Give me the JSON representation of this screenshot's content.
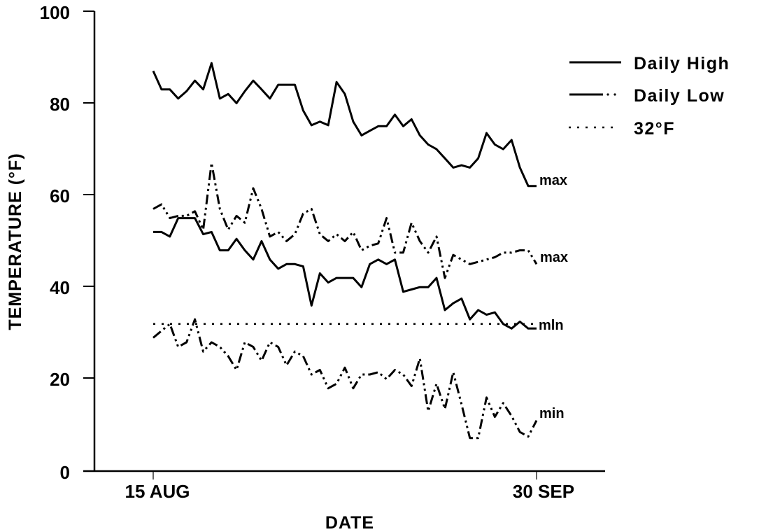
{
  "chart_data": {
    "type": "line",
    "title": "",
    "xlabel": "DATE",
    "ylabel": "TEMPERATURE (°F)",
    "ylim": [
      0,
      100
    ],
    "yticks": [
      0,
      20,
      40,
      60,
      80,
      100
    ],
    "xlim_days": [
      -7.9,
      54.2
    ],
    "xticks": [
      {
        "day": 0,
        "label": "15 AUG"
      },
      {
        "day": 46,
        "label": "30 SEP"
      }
    ],
    "grid": false,
    "legend_position": "upper right",
    "legend": [
      {
        "label": "Daily High",
        "style": "solid"
      },
      {
        "label": "Daily Low",
        "style": "dash-dot"
      },
      {
        "label": "32°F",
        "style": "dotted"
      }
    ],
    "series": [
      {
        "name": "Daily High max",
        "end_label": "max",
        "style": "solid",
        "x": [
          0,
          1,
          2,
          3,
          4,
          5,
          6,
          7,
          8,
          9,
          10,
          11,
          12,
          13,
          14,
          15,
          16,
          17,
          18,
          19,
          20,
          21,
          22,
          23,
          24,
          25,
          26,
          27,
          28,
          29,
          30,
          31,
          32,
          33,
          34,
          35,
          36,
          37,
          38,
          39,
          40,
          41,
          42,
          43,
          44,
          45,
          46
        ],
        "values": [
          87,
          83,
          83,
          81,
          82.6,
          84.9,
          83,
          88.7,
          81,
          82,
          80,
          82.6,
          84.9,
          83,
          81,
          84,
          84,
          84,
          78.4,
          75.2,
          76,
          75.2,
          84.6,
          82,
          76,
          73,
          74,
          75,
          75,
          77.5,
          75,
          76.5,
          73,
          71,
          70,
          68,
          66,
          66.5,
          66,
          68,
          73.5,
          71,
          70,
          72,
          66,
          62,
          62
        ]
      },
      {
        "name": "Daily Low max",
        "end_label": "max",
        "style": "dash-dot",
        "x": [
          0,
          1,
          2,
          3,
          4,
          5,
          6,
          7,
          8,
          9,
          10,
          11,
          12,
          13,
          14,
          15,
          16,
          17,
          18,
          19,
          20,
          21,
          22,
          23,
          24,
          25,
          26,
          27,
          28,
          29,
          30,
          31,
          32,
          33,
          34,
          35,
          36,
          37,
          38,
          39,
          40,
          41,
          42,
          43,
          44,
          45,
          46
        ],
        "values": [
          57,
          58,
          55,
          55.5,
          55.5,
          56.5,
          52.5,
          67,
          57,
          52.5,
          55.5,
          54,
          61.5,
          57,
          51,
          52,
          50,
          51.5,
          56,
          57,
          51.5,
          50,
          51.5,
          50,
          52,
          48,
          49,
          49.5,
          55,
          47.5,
          47.5,
          54,
          50,
          47.5,
          51,
          42,
          47,
          46,
          45,
          45.5,
          46,
          46.5,
          47.5,
          47.5,
          48,
          48,
          45
        ]
      },
      {
        "name": "Daily High min",
        "end_label": "min",
        "style": "solid",
        "x": [
          0,
          1,
          2,
          3,
          4,
          5,
          6,
          7,
          8,
          9,
          10,
          11,
          12,
          13,
          14,
          15,
          16,
          17,
          18,
          19,
          20,
          21,
          22,
          23,
          24,
          25,
          26,
          27,
          28,
          29,
          30,
          31,
          32,
          33,
          34,
          35,
          36,
          37,
          38,
          39,
          40,
          41,
          42,
          43,
          44,
          45,
          46
        ],
        "values": [
          52,
          52,
          51,
          55,
          55,
          55,
          51.5,
          52,
          48,
          48,
          50.5,
          48,
          46,
          50,
          46,
          44,
          45,
          45,
          44.5,
          36,
          43,
          41,
          42,
          42,
          42,
          40,
          45,
          46,
          45,
          46,
          39,
          39.5,
          40,
          40,
          42,
          35,
          36.5,
          37.5,
          33,
          35,
          34,
          34.5,
          32,
          31,
          32.5,
          31,
          31
        ]
      },
      {
        "name": "Daily Low min",
        "end_label": "min",
        "style": "dash-dot",
        "x": [
          0,
          1,
          2,
          3,
          4,
          5,
          6,
          7,
          8,
          9,
          10,
          11,
          12,
          13,
          14,
          15,
          16,
          17,
          18,
          19,
          20,
          21,
          22,
          23,
          24,
          25,
          26,
          27,
          28,
          29,
          30,
          31,
          32,
          33,
          34,
          35,
          36,
          37,
          38,
          39,
          40,
          41,
          42,
          43,
          44,
          45,
          46
        ],
        "values": [
          29,
          30.5,
          32,
          27,
          28,
          33,
          26,
          28,
          27,
          25,
          22,
          28,
          27,
          24,
          28,
          27,
          23,
          26,
          25,
          21,
          22,
          18,
          19,
          22.5,
          18,
          21,
          21,
          21.5,
          20,
          22,
          21,
          18.5,
          24.5,
          13,
          19,
          13.5,
          21.5,
          14.5,
          7.2,
          7.2,
          16,
          11.8,
          14.8,
          12,
          8.5,
          7.5,
          11
        ]
      },
      {
        "name": "32°F",
        "style": "dotted",
        "x": [
          0,
          46
        ],
        "values": [
          32,
          32
        ]
      }
    ]
  },
  "legend": {
    "items": [
      {
        "label": "Daily High"
      },
      {
        "label": "Daily Low"
      },
      {
        "label": "32°F"
      }
    ]
  },
  "axes": {
    "y_title": "TEMPERATURE (°F)",
    "x_title": "DATE",
    "y_ticks": [
      "0",
      "20",
      "40",
      "60",
      "80",
      "100"
    ],
    "x_ticks": [
      "15 AUG",
      "30 SEP"
    ]
  },
  "end_labels": [
    "max",
    "max",
    "mln",
    "min"
  ]
}
